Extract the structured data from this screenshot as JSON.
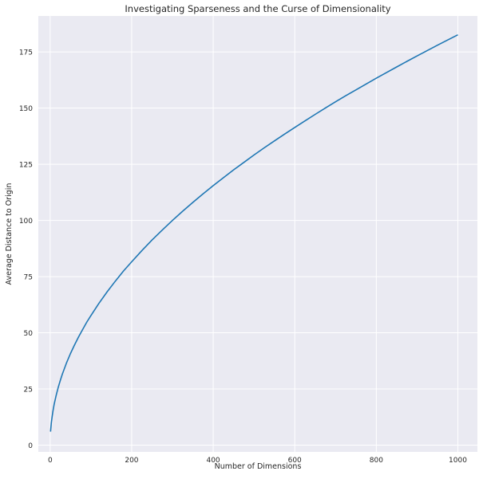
{
  "chart_data": {
    "type": "line",
    "title": "Investigating Sparseness and the Curse of Dimensionality",
    "xlabel": "Number of Dimensions",
    "ylabel": "Average Distance to Origin",
    "xlim": [
      -29,
      1048
    ],
    "ylim": [
      -3,
      191
    ],
    "x_ticks": [
      0,
      200,
      400,
      600,
      800,
      1000
    ],
    "y_ticks": [
      0,
      25,
      50,
      75,
      100,
      125,
      150,
      175
    ],
    "grid": true,
    "legend": "none",
    "colors": {
      "line": "#1f77b4",
      "background": "#eaeaf2",
      "grid": "#ffffff"
    },
    "series": [
      {
        "x": [
          1,
          2,
          3,
          5,
          7,
          10,
          15,
          20,
          25,
          30,
          40,
          50,
          60,
          70,
          80,
          90,
          100,
          120,
          140,
          160,
          180,
          200,
          225,
          250,
          275,
          300,
          325,
          350,
          375,
          400,
          425,
          450,
          475,
          500,
          525,
          550,
          575,
          600,
          625,
          650,
          675,
          700,
          725,
          750,
          775,
          800,
          825,
          850,
          875,
          900,
          925,
          950,
          975,
          1000
        ],
        "values": [
          6,
          8,
          10,
          12.9,
          15.3,
          18.3,
          22.4,
          25.8,
          28.9,
          31.6,
          36.5,
          40.8,
          44.7,
          48.3,
          51.6,
          54.8,
          57.7,
          63.2,
          68.3,
          73.0,
          77.5,
          81.6,
          86.6,
          91.3,
          95.7,
          100.0,
          104.1,
          108.0,
          111.8,
          115.5,
          119.0,
          122.5,
          125.8,
          129.1,
          132.3,
          135.4,
          138.4,
          141.4,
          144.3,
          147.2,
          150.0,
          152.8,
          155.5,
          158.1,
          160.7,
          163.3,
          165.8,
          168.3,
          170.8,
          173.2,
          175.6,
          178.0,
          180.3,
          182.6
        ]
      }
    ]
  }
}
